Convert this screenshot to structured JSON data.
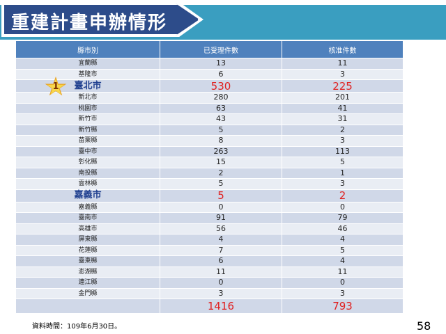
{
  "title": "重建計畫申辦情形",
  "table": {
    "headers": [
      "縣市別",
      "已受理件數",
      "核准件數"
    ],
    "rows": [
      {
        "county": "宜蘭縣",
        "received": "13",
        "approved": "11"
      },
      {
        "county": "基隆市",
        "received": "6",
        "approved": "3"
      },
      {
        "county": "臺北市",
        "received": "530",
        "approved": "225"
      },
      {
        "county": "新北市",
        "received": "280",
        "approved": "201"
      },
      {
        "county": "桃園市",
        "received": "63",
        "approved": "41"
      },
      {
        "county": "新竹市",
        "received": "43",
        "approved": "31"
      },
      {
        "county": "新竹縣",
        "received": "5",
        "approved": "2"
      },
      {
        "county": "苗栗縣",
        "received": "8",
        "approved": "3"
      },
      {
        "county": "臺中市",
        "received": "263",
        "approved": "113"
      },
      {
        "county": "彰化縣",
        "received": "15",
        "approved": "5"
      },
      {
        "county": "南投縣",
        "received": "2",
        "approved": "1"
      },
      {
        "county": "雲林縣",
        "received": "5",
        "approved": "3"
      },
      {
        "county": "嘉義市",
        "received": "5",
        "approved": "2"
      },
      {
        "county": "嘉義縣",
        "received": "0",
        "approved": "0"
      },
      {
        "county": "臺南市",
        "received": "91",
        "approved": "79"
      },
      {
        "county": "高雄市",
        "received": "56",
        "approved": "46"
      },
      {
        "county": "屏東縣",
        "received": "4",
        "approved": "4"
      },
      {
        "county": "花蓮縣",
        "received": "7",
        "approved": "5"
      },
      {
        "county": "臺東縣",
        "received": "6",
        "approved": "4"
      },
      {
        "county": "澎湖縣",
        "received": "11",
        "approved": "11"
      },
      {
        "county": "連江縣",
        "received": "0",
        "approved": "0"
      },
      {
        "county": "金門縣",
        "received": "3",
        "approved": "3"
      }
    ],
    "highlighted_rows": [
      2,
      12
    ],
    "total": {
      "county": "",
      "received": "1416",
      "approved": "793"
    }
  },
  "rank_badge": "1",
  "footnote": "資料時間：109年6月30日。",
  "page_number": "58",
  "colors": {
    "banner": "#3a9ec0",
    "title_box": "#2d4c8a",
    "header": "#4f81bd",
    "row_odd": "#d0d8e8",
    "row_even": "#e9edf4",
    "highlight_number": "#e02020",
    "highlight_county": "#1f3f8f"
  }
}
